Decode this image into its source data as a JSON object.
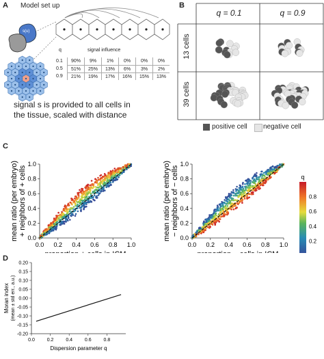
{
  "panel_a": {
    "label": "A",
    "title": "Model set up",
    "cell_label": "s(u)",
    "q_header": "q",
    "influence_header": "signal influence",
    "table": [
      {
        "q": "0.1",
        "vals": [
          "90%",
          "9%",
          "1%",
          "0%",
          "0%",
          "0%"
        ]
      },
      {
        "q": "0.5",
        "vals": [
          "51%",
          "25%",
          "13%",
          "6%",
          "3%",
          "2%"
        ]
      },
      {
        "q": "0.9",
        "vals": [
          "21%",
          "19%",
          "17%",
          "16%",
          "15%",
          "13%"
        ]
      }
    ],
    "caption_line1": "signal s is provided to all cells in",
    "caption_line2": "the tissue, scaled with distance"
  },
  "panel_b": {
    "label": "B",
    "col_headers": [
      "q = 0.1",
      "q = 0.9"
    ],
    "row_headers": [
      "13 cells",
      "39 cells"
    ],
    "legend_positive": "positive cell",
    "legend_negative": "negative cell",
    "colors": {
      "positive": "#555555",
      "negative": "#e6e6e6"
    }
  },
  "panel_c": {
    "label": "C"
  },
  "panel_d": {
    "label": "D"
  },
  "chart_data": [
    {
      "type": "scatter",
      "xlabel": "proportion + cells in ICM",
      "ylabel_line1": "mean ratio (per embryo)",
      "ylabel_line2": "+ neighbors of + cells",
      "xlim": [
        0,
        1
      ],
      "ylim": [
        0,
        1
      ],
      "xticks": [
        "0.0",
        "0.2",
        "0.4",
        "0.6",
        "0.8",
        "1.0"
      ],
      "yticks": [
        "0.0",
        "0.2",
        "0.4",
        "0.6",
        "0.8",
        "1.0"
      ],
      "diagonal": [
        [
          0,
          0
        ],
        [
          1,
          1
        ]
      ]
    },
    {
      "type": "scatter",
      "xlabel": "proportion − cells in ICM",
      "ylabel_line1": "mean ratio (per embryo)",
      "ylabel_line2": "− neighbors of − cells",
      "xlim": [
        0,
        1
      ],
      "ylim": [
        0,
        1
      ],
      "xticks": [
        "0.0",
        "0.2",
        "0.4",
        "0.6",
        "0.8",
        "1.0"
      ],
      "yticks": [
        "0.0",
        "0.2",
        "0.4",
        "0.6",
        "0.8",
        "1.0"
      ],
      "diagonal": [
        [
          0,
          0
        ],
        [
          1,
          1
        ]
      ],
      "colorbar": {
        "label": "q",
        "ticks": [
          "0.2",
          "0.4",
          "0.6",
          "0.8"
        ],
        "range": [
          0,
          1
        ]
      }
    },
    {
      "type": "line",
      "xlabel": "Dispersion parameter q",
      "ylabel_line1": "Moran index",
      "ylabel_line2": "(mean ± std err., a.u.)",
      "xlim": [
        0,
        1
      ],
      "ylim": [
        -0.2,
        0.2
      ],
      "xticks": [
        "0.0",
        "0.2",
        "0.4",
        "0.6",
        "0.8"
      ],
      "yticks": [
        "0.20",
        "0.15",
        "0.10",
        "0.05",
        "0.00",
        "-0.05",
        "-0.10",
        "-0.15",
        "-0.20"
      ],
      "x": [
        0.05,
        0.95
      ],
      "y": [
        -0.13,
        0.02
      ]
    }
  ]
}
